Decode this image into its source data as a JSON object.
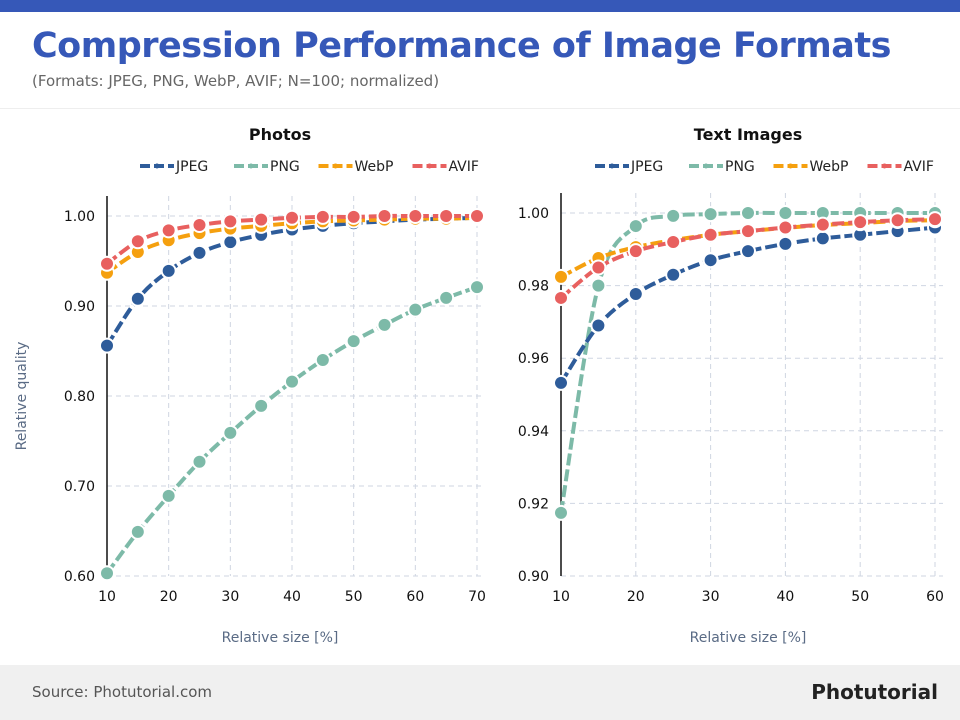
{
  "header": {
    "title": "Compression Performance of Image Formats",
    "subtitle": "(Formats: JPEG, PNG, WebP, AVIF; N=100; normalized)"
  },
  "footer": {
    "source": "Source: Photutorial.com",
    "brand": "Photutorial"
  },
  "colors": {
    "JPEG": "#2e5c9a",
    "PNG": "#7dbaa8",
    "WebP": "#f5a00f",
    "AVIF": "#e8605f",
    "accent": "#3658b8"
  },
  "chart_data": [
    {
      "type": "line",
      "title": "Photos",
      "xlabel": "Relative size [%]",
      "ylabel": "Relative quality",
      "xlim": [
        10,
        70
      ],
      "ylim": [
        0.6,
        1.0
      ],
      "grid": true,
      "legend": "top",
      "x_ticks": [
        "10",
        "20",
        "30",
        "40",
        "50",
        "60",
        "70"
      ],
      "y_ticks": [
        "0.60",
        "0.70",
        "0.80",
        "0.90",
        "1.00"
      ],
      "x": [
        10,
        15,
        20,
        25,
        30,
        35,
        40,
        45,
        50,
        55,
        60,
        65,
        70
      ],
      "series": [
        {
          "name": "JPEG",
          "values": [
            0.856,
            0.908,
            0.939,
            0.959,
            0.971,
            0.979,
            0.985,
            0.989,
            0.992,
            0.994,
            0.996,
            0.997,
            0.998
          ]
        },
        {
          "name": "PNG",
          "values": [
            0.603,
            0.649,
            0.689,
            0.727,
            0.759,
            0.789,
            0.816,
            0.84,
            0.861,
            0.879,
            0.896,
            0.909,
            0.921
          ]
        },
        {
          "name": "WebP",
          "values": [
            0.937,
            0.96,
            0.973,
            0.981,
            0.986,
            0.989,
            0.992,
            0.994,
            0.995,
            0.996,
            0.997,
            0.997,
            0.998
          ]
        },
        {
          "name": "AVIF",
          "values": [
            0.947,
            0.972,
            0.984,
            0.99,
            0.994,
            0.996,
            0.998,
            0.999,
            0.999,
            1.0,
            1.0,
            1.0,
            1.0
          ]
        }
      ]
    },
    {
      "type": "line",
      "title": "Text Images",
      "xlabel": "Relative size [%]",
      "ylabel": "",
      "xlim": [
        10,
        60
      ],
      "ylim": [
        0.9,
        1.0
      ],
      "grid": true,
      "legend": "top",
      "x_ticks": [
        "10",
        "20",
        "30",
        "40",
        "50",
        "60"
      ],
      "y_ticks": [
        "0.90",
        "0.92",
        "0.94",
        "0.96",
        "0.98",
        "1.00"
      ],
      "x": [
        10,
        15,
        20,
        25,
        30,
        35,
        40,
        45,
        50,
        55,
        60
      ],
      "series": [
        {
          "name": "JPEG",
          "values": [
            0.9532,
            0.969,
            0.9777,
            0.983,
            0.987,
            0.9895,
            0.9915,
            0.993,
            0.994,
            0.995,
            0.996
          ]
        },
        {
          "name": "PNG",
          "values": [
            0.9174,
            0.98,
            0.9964,
            0.9992,
            0.9997,
            1.0,
            1.0,
            1.0,
            1.0,
            1.0,
            1.0
          ]
        },
        {
          "name": "WebP",
          "values": [
            0.9824,
            0.9876,
            0.9906,
            0.9925,
            0.994,
            0.995,
            0.9959,
            0.9967,
            0.9972,
            0.9978,
            0.998
          ]
        },
        {
          "name": "AVIF",
          "values": [
            0.9766,
            0.985,
            0.9895,
            0.992,
            0.994,
            0.995,
            0.996,
            0.9968,
            0.9975,
            0.998,
            0.9983
          ]
        }
      ]
    }
  ]
}
